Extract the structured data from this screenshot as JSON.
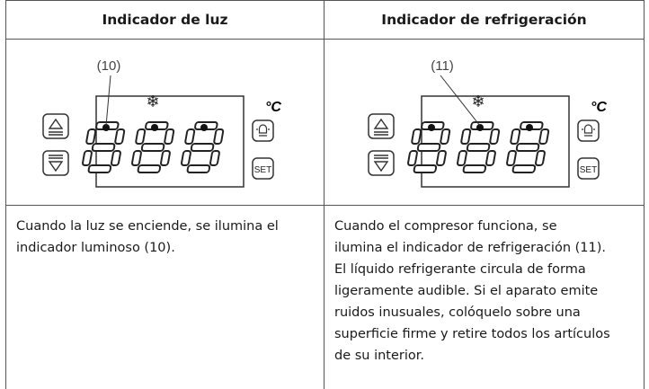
{
  "table": {
    "header": [
      "Indicador de luz",
      "Indicador de refrigeración"
    ],
    "panels": [
      {
        "callout": "(10)",
        "unit": "°C",
        "set": "SET"
      },
      {
        "callout": "(11)",
        "unit": "°C",
        "set": "SET"
      }
    ],
    "rows": [
      [
        "Cuando la luz se enciende, se ilumina el",
        "indicador luminoso (10)."
      ],
      [
        "Cuando el compresor funciona, se",
        "ilumina el indicador de refrigeración (11).",
        "El líquido refrigerante circula de forma",
        "ligeramente audible. Si el aparato emite",
        "ruidos inusuales, colóquelo sobre una",
        "superficie firme y retire todos los artículos",
        "de su interior."
      ]
    ]
  }
}
